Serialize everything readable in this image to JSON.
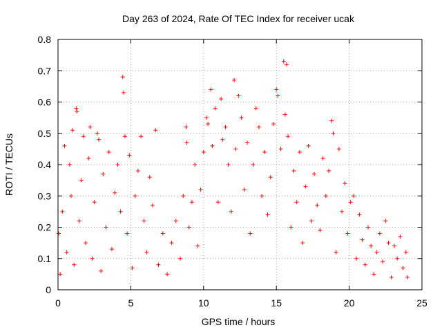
{
  "chart_data": {
    "type": "scatter",
    "title": "Day 263 of 2024, Rate Of TEC Index for receiver ucak",
    "xlabel": "GPS time / hours",
    "ylabel": "ROTI / TECUs",
    "xlim": [
      0,
      25
    ],
    "ylim": [
      0,
      0.8
    ],
    "x_ticks": [
      "0",
      "5",
      "10",
      "15",
      "20",
      "25"
    ],
    "y_ticks": [
      "0",
      "0.1",
      "0.2",
      "0.3",
      "0.4",
      "0.5",
      "0.6",
      "0.7",
      "0.8"
    ],
    "grid": true,
    "marker": "+",
    "color": "#ff0000",
    "series": [
      {
        "points": [
          [
            0.05,
            0.18
          ],
          [
            0.15,
            0.05
          ],
          [
            0.3,
            0.25
          ],
          [
            0.45,
            0.46
          ],
          [
            0.6,
            0.12
          ],
          [
            0.8,
            0.4
          ],
          [
            0.9,
            0.3
          ],
          [
            1.0,
            0.51
          ],
          [
            1.1,
            0.08
          ],
          [
            1.25,
            0.58
          ],
          [
            1.3,
            0.57
          ],
          [
            1.45,
            0.22
          ],
          [
            1.6,
            0.35
          ],
          [
            1.75,
            0.49
          ],
          [
            1.9,
            0.15
          ],
          [
            2.1,
            0.42
          ],
          [
            2.2,
            0.52
          ],
          [
            2.35,
            0.1
          ],
          [
            2.5,
            0.28
          ],
          [
            2.7,
            0.5
          ],
          [
            2.8,
            0.48
          ],
          [
            2.95,
            0.06
          ],
          [
            3.1,
            0.37
          ],
          [
            3.3,
            0.2
          ],
          [
            3.5,
            0.44
          ],
          [
            3.7,
            0.13
          ],
          [
            3.9,
            0.31
          ],
          [
            4.1,
            0.4
          ],
          [
            4.3,
            0.25
          ],
          [
            4.45,
            0.68
          ],
          [
            4.5,
            0.63
          ],
          [
            4.6,
            0.49
          ],
          [
            4.75,
            0.18
          ],
          [
            4.9,
            0.43
          ],
          [
            5.1,
            0.07
          ],
          [
            5.3,
            0.3
          ],
          [
            5.5,
            0.38
          ],
          [
            5.7,
            0.49
          ],
          [
            5.9,
            0.22
          ],
          [
            6.1,
            0.12
          ],
          [
            6.3,
            0.36
          ],
          [
            6.5,
            0.27
          ],
          [
            6.7,
            0.51
          ],
          [
            6.9,
            0.08
          ],
          [
            7.2,
            0.18
          ],
          [
            7.5,
            0.05
          ],
          [
            7.8,
            0.15
          ],
          [
            8.1,
            0.22
          ],
          [
            8.4,
            0.1
          ],
          [
            8.6,
            0.3
          ],
          [
            8.8,
            0.52
          ],
          [
            8.85,
            0.47
          ],
          [
            9.0,
            0.2
          ],
          [
            9.2,
            0.28
          ],
          [
            9.4,
            0.4
          ],
          [
            9.6,
            0.14
          ],
          [
            9.8,
            0.32
          ],
          [
            10.0,
            0.44
          ],
          [
            10.2,
            0.55
          ],
          [
            10.3,
            0.53
          ],
          [
            10.5,
            0.64
          ],
          [
            10.6,
            0.46
          ],
          [
            10.8,
            0.58
          ],
          [
            11.0,
            0.28
          ],
          [
            11.2,
            0.61
          ],
          [
            11.3,
            0.48
          ],
          [
            11.5,
            0.52
          ],
          [
            11.7,
            0.4
          ],
          [
            11.9,
            0.25
          ],
          [
            12.1,
            0.67
          ],
          [
            12.2,
            0.45
          ],
          [
            12.4,
            0.62
          ],
          [
            12.6,
            0.55
          ],
          [
            12.8,
            0.32
          ],
          [
            13.0,
            0.47
          ],
          [
            13.2,
            0.18
          ],
          [
            13.4,
            0.4
          ],
          [
            13.6,
            0.58
          ],
          [
            13.8,
            0.52
          ],
          [
            14.0,
            0.3
          ],
          [
            14.2,
            0.44
          ],
          [
            14.4,
            0.24
          ],
          [
            14.6,
            0.36
          ],
          [
            14.8,
            0.53
          ],
          [
            15.0,
            0.64
          ],
          [
            15.1,
            0.62
          ],
          [
            15.3,
            0.45
          ],
          [
            15.5,
            0.73
          ],
          [
            15.6,
            0.56
          ],
          [
            15.7,
            0.72
          ],
          [
            15.8,
            0.49
          ],
          [
            16.0,
            0.2
          ],
          [
            16.2,
            0.38
          ],
          [
            16.4,
            0.28
          ],
          [
            16.6,
            0.44
          ],
          [
            16.8,
            0.15
          ],
          [
            17.0,
            0.33
          ],
          [
            17.2,
            0.46
          ],
          [
            17.4,
            0.22
          ],
          [
            17.6,
            0.37
          ],
          [
            17.8,
            0.27
          ],
          [
            18.0,
            0.19
          ],
          [
            18.2,
            0.42
          ],
          [
            18.4,
            0.3
          ],
          [
            18.6,
            0.38
          ],
          [
            18.8,
            0.54
          ],
          [
            18.9,
            0.5
          ],
          [
            19.1,
            0.12
          ],
          [
            19.3,
            0.45
          ],
          [
            19.5,
            0.25
          ],
          [
            19.7,
            0.34
          ],
          [
            19.9,
            0.18
          ],
          [
            20.1,
            0.28
          ],
          [
            20.3,
            0.3
          ],
          [
            20.5,
            0.1
          ],
          [
            20.7,
            0.24
          ],
          [
            20.9,
            0.16
          ],
          [
            21.1,
            0.08
          ],
          [
            21.3,
            0.2
          ],
          [
            21.5,
            0.14
          ],
          [
            21.7,
            0.05
          ],
          [
            21.9,
            0.12
          ],
          [
            22.1,
            0.18
          ],
          [
            22.3,
            0.09
          ],
          [
            22.5,
            0.22
          ],
          [
            22.7,
            0.15
          ],
          [
            22.9,
            0.04
          ],
          [
            23.1,
            0.14
          ],
          [
            23.3,
            0.1
          ],
          [
            23.5,
            0.17
          ],
          [
            23.7,
            0.07
          ],
          [
            23.9,
            0.12
          ],
          [
            24.0,
            0.04
          ]
        ]
      }
    ]
  }
}
